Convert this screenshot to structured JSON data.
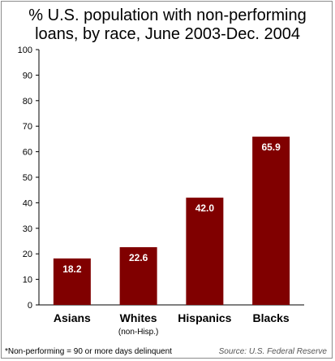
{
  "chart_data": {
    "type": "bar",
    "title_lines": [
      "% U.S. population with non-performing",
      "loans, by race, June 2003-Dec. 2004"
    ],
    "categories": [
      "Asians",
      "Whites",
      "Hispanics",
      "Blacks"
    ],
    "category_sublabels": [
      "",
      "(non-Hisp.)",
      "",
      ""
    ],
    "values": [
      18.2,
      22.6,
      42.0,
      65.9
    ],
    "value_labels": [
      "18.2",
      "22.6",
      "42.0",
      "65.9"
    ],
    "ylim": [
      0,
      100
    ],
    "yticks": [
      0,
      10,
      20,
      30,
      40,
      50,
      60,
      70,
      80,
      90,
      100
    ],
    "bar_color": "#800000",
    "grid": false,
    "legend": "none"
  },
  "footnote": "*Non-performing = 90 or more days delinquent",
  "source": "Source: U.S. Federal Reserve"
}
